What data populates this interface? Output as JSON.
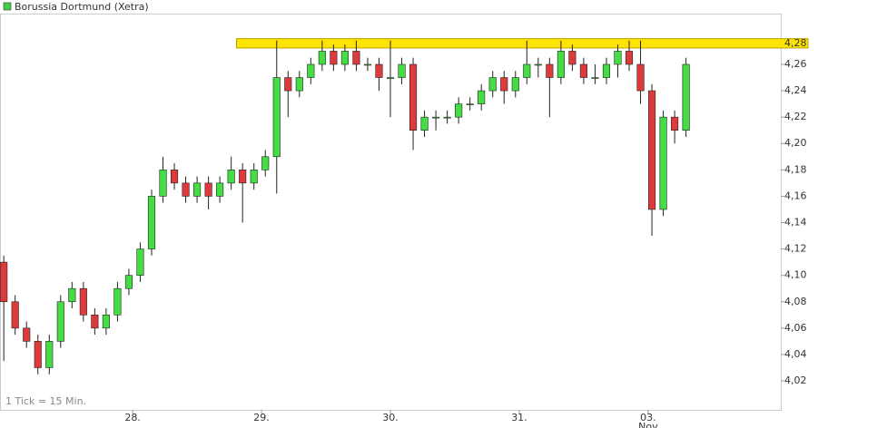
{
  "chart_data": {
    "type": "candlestick",
    "title": "Borussia Dortmund (Xetra)",
    "footnote": "1 Tick = 15 Min.",
    "title_color": "#44cc44",
    "up_color": "#44dd44",
    "down_color": "#dd3b3b",
    "band_color": "#ffe400",
    "x": [
      0,
      3,
      6,
      9,
      12,
      15,
      18,
      21,
      24,
      27,
      30,
      33,
      36,
      39,
      42,
      45,
      48,
      51,
      54,
      57,
      60,
      63,
      66,
      69,
      72,
      75,
      78,
      81,
      84,
      87,
      90,
      93,
      96,
      99,
      102,
      105,
      108,
      111,
      114,
      117,
      120,
      123,
      126,
      129,
      132,
      135,
      138,
      141,
      144,
      147,
      150,
      153,
      156,
      159,
      162,
      165,
      168,
      171,
      174,
      177,
      180
    ],
    "open": [
      4.11,
      4.08,
      4.06,
      4.05,
      4.03,
      4.05,
      4.08,
      4.09,
      4.07,
      4.06,
      4.07,
      4.09,
      4.1,
      4.12,
      4.16,
      4.18,
      4.17,
      4.16,
      4.17,
      4.16,
      4.17,
      4.18,
      4.17,
      4.18,
      4.19,
      4.25,
      4.24,
      4.25,
      4.26,
      4.27,
      4.26,
      4.27,
      4.26,
      4.26,
      4.25,
      4.25,
      4.26,
      4.21,
      4.22,
      4.22,
      4.22,
      4.23,
      4.23,
      4.24,
      4.25,
      4.24,
      4.25,
      4.26,
      4.26,
      4.25,
      4.27,
      4.26,
      4.25,
      4.25,
      4.26,
      4.27,
      4.26,
      4.24,
      4.15,
      4.22,
      4.21
    ],
    "high": [
      4.115,
      4.085,
      4.065,
      4.055,
      4.055,
      4.085,
      4.095,
      4.095,
      4.075,
      4.075,
      4.095,
      4.105,
      4.125,
      4.165,
      4.19,
      4.185,
      4.175,
      4.175,
      4.175,
      4.175,
      4.19,
      4.185,
      4.185,
      4.195,
      4.278,
      4.255,
      4.255,
      4.265,
      4.278,
      4.275,
      4.275,
      4.278,
      4.265,
      4.265,
      4.278,
      4.265,
      4.265,
      4.225,
      4.225,
      4.225,
      4.235,
      4.235,
      4.245,
      4.255,
      4.255,
      4.255,
      4.278,
      4.265,
      4.265,
      4.278,
      4.275,
      4.265,
      4.26,
      4.265,
      4.275,
      4.278,
      4.278,
      4.245,
      4.225,
      4.225,
      4.265
    ],
    "low": [
      4.035,
      4.055,
      4.045,
      4.025,
      4.025,
      4.045,
      4.075,
      4.065,
      4.055,
      4.055,
      4.065,
      4.085,
      4.095,
      4.115,
      4.155,
      4.165,
      4.155,
      4.155,
      4.15,
      4.155,
      4.165,
      4.14,
      4.165,
      4.175,
      4.162,
      4.22,
      4.235,
      4.245,
      4.255,
      4.255,
      4.255,
      4.255,
      4.255,
      4.24,
      4.22,
      4.245,
      4.195,
      4.205,
      4.21,
      4.215,
      4.215,
      4.225,
      4.225,
      4.235,
      4.23,
      4.235,
      4.245,
      4.25,
      4.22,
      4.245,
      4.255,
      4.245,
      4.245,
      4.245,
      4.25,
      4.255,
      4.23,
      4.13,
      4.145,
      4.2,
      4.205
    ],
    "close": [
      4.08,
      4.06,
      4.05,
      4.03,
      4.05,
      4.08,
      4.09,
      4.07,
      4.06,
      4.07,
      4.09,
      4.1,
      4.12,
      4.16,
      4.18,
      4.17,
      4.16,
      4.17,
      4.16,
      4.17,
      4.18,
      4.17,
      4.18,
      4.19,
      4.25,
      4.24,
      4.25,
      4.26,
      4.27,
      4.26,
      4.27,
      4.26,
      4.26,
      4.25,
      4.25,
      4.26,
      4.21,
      4.22,
      4.22,
      4.22,
      4.23,
      4.23,
      4.24,
      4.25,
      4.24,
      4.25,
      4.26,
      4.26,
      4.25,
      4.27,
      4.26,
      4.25,
      4.25,
      4.26,
      4.27,
      4.26,
      4.24,
      4.15,
      4.22,
      4.21,
      4.26
    ],
    "xlim": [
      -1,
      205
    ],
    "xticks": [
      {
        "value": 34,
        "label": "28."
      },
      {
        "value": 68,
        "label": "29."
      },
      {
        "value": 102,
        "label": "30."
      },
      {
        "value": 136,
        "label": "31."
      },
      {
        "value": 170,
        "label": "03."
      }
    ],
    "x_sublabel": {
      "value": 170,
      "label": "Nov"
    },
    "ylim": [
      3.998,
      4.2985
    ],
    "yticks": [
      {
        "value": 4.02,
        "label": "4,02"
      },
      {
        "value": 4.04,
        "label": "4,04"
      },
      {
        "value": 4.06,
        "label": "4,06"
      },
      {
        "value": 4.08,
        "label": "4,08"
      },
      {
        "value": 4.1,
        "label": "4,10"
      },
      {
        "value": 4.12,
        "label": "4,12"
      },
      {
        "value": 4.14,
        "label": "4,14"
      },
      {
        "value": 4.16,
        "label": "4,16"
      },
      {
        "value": 4.18,
        "label": "4,18"
      },
      {
        "value": 4.2,
        "label": "4,20"
      },
      {
        "value": 4.22,
        "label": "4,22"
      },
      {
        "value": 4.24,
        "label": "4,24"
      },
      {
        "value": 4.26,
        "label": "4,26"
      }
    ],
    "band": {
      "start_x": 61.4,
      "low": 4.2724,
      "high": 4.2795,
      "label": "4,28"
    }
  }
}
